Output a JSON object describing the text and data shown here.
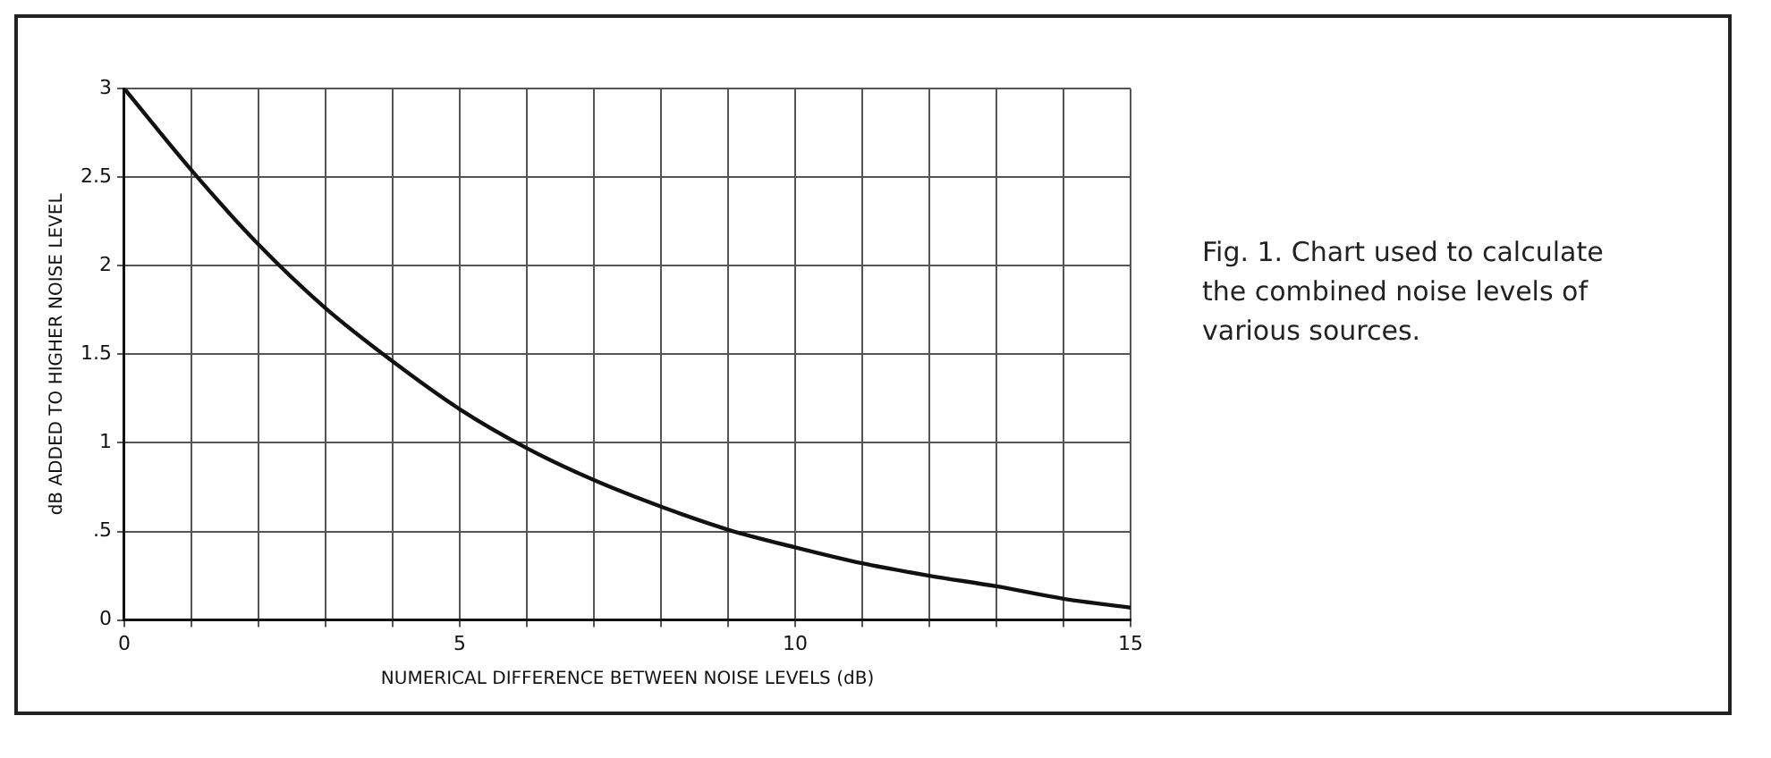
{
  "chart_data": {
    "type": "line",
    "xlabel": "NUMERICAL DIFFERENCE BETWEEN NOISE LEVELS (dB)",
    "ylabel": "dB ADDED TO HIGHER NOISE LEVEL",
    "x": [
      0,
      1,
      2,
      3,
      4,
      5,
      6,
      7,
      8,
      9,
      10,
      11,
      12,
      13,
      14,
      15
    ],
    "series": [
      {
        "color": "#111111",
        "values": [
          3.0,
          2.54,
          2.12,
          1.76,
          1.46,
          1.19,
          0.97,
          0.79,
          0.64,
          0.51,
          0.41,
          0.32,
          0.25,
          0.19,
          0.12,
          0.07
        ]
      }
    ],
    "xlim": [
      0,
      15
    ],
    "ylim": [
      0,
      3
    ],
    "xticks": [
      0,
      {
        "value": 1,
        "label": null
      },
      {
        "value": 2,
        "label": null
      },
      {
        "value": 3,
        "label": null
      },
      {
        "value": 4,
        "label": null
      },
      5,
      {
        "value": 6,
        "label": null
      },
      {
        "value": 7,
        "label": null
      },
      {
        "value": 8,
        "label": null
      },
      {
        "value": 9,
        "label": null
      },
      10,
      {
        "value": 11,
        "label": null
      },
      {
        "value": 12,
        "label": null
      },
      {
        "value": 13,
        "label": null
      },
      {
        "value": 14,
        "label": null
      },
      15
    ],
    "yticks": [
      0,
      {
        "value": 0.5,
        "label": ".5"
      },
      1,
      1.5,
      2,
      2.5,
      3
    ],
    "grid": true,
    "legend": false,
    "marker": "none",
    "line_style": "solid",
    "annotations": [
      "Fig. 1. Chart used to calculate the combined noise levels of various sources."
    ]
  }
}
